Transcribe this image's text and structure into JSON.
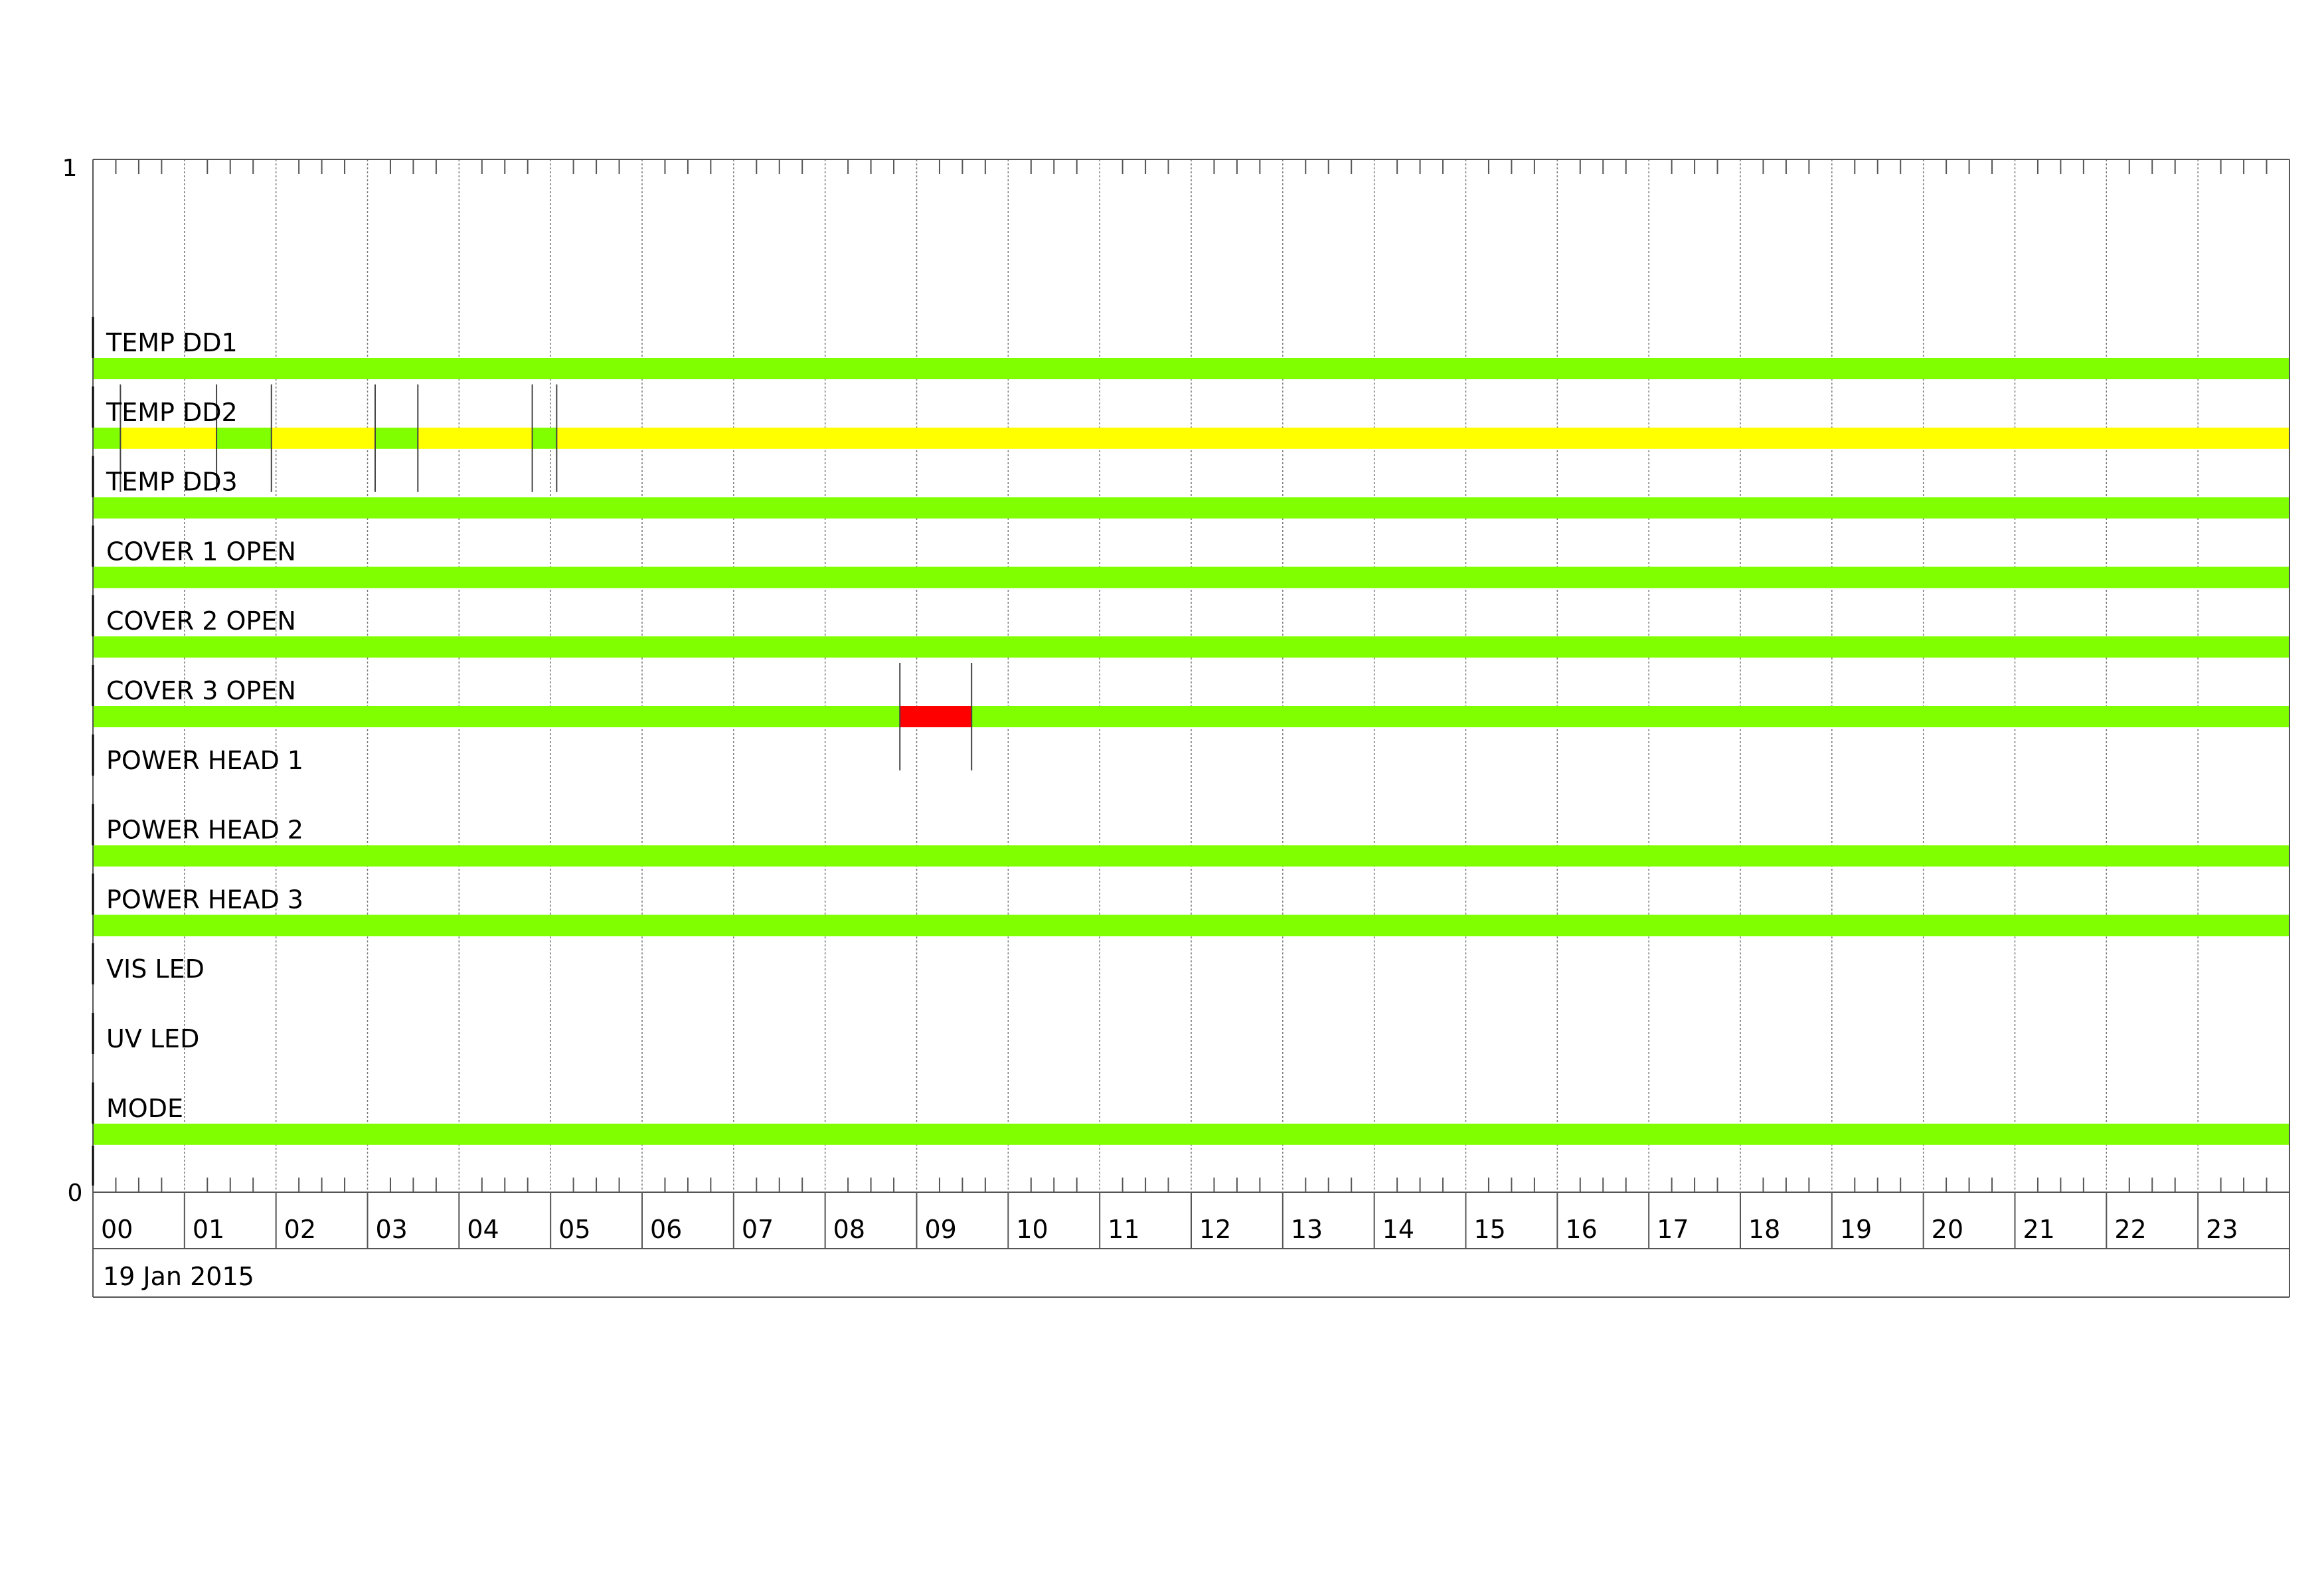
{
  "chart_data": {
    "type": "timeline",
    "title": "",
    "xlabel": "",
    "ylabel": "",
    "y_tick_labels": {
      "top": "1",
      "bottom": "0"
    },
    "ylim": [
      0,
      1
    ],
    "x_range_hours": [
      0,
      24
    ],
    "x_tick_labels": [
      "00",
      "01",
      "02",
      "03",
      "04",
      "05",
      "06",
      "07",
      "08",
      "09",
      "10",
      "11",
      "12",
      "13",
      "14",
      "15",
      "16",
      "17",
      "18",
      "19",
      "20",
      "21",
      "22",
      "23"
    ],
    "minor_ticks_per_hour": 4,
    "date_label": "19 Jan 2015",
    "grid": "vertical dotted at each hour",
    "colors": {
      "ok": "#7fff00",
      "warning": "#ffff00",
      "alarm": "#ff0000"
    },
    "rows": [
      {
        "label": "TEMP DD1",
        "segments": [
          {
            "start": "00:00",
            "end": "24:00",
            "state": "ok"
          }
        ]
      },
      {
        "label": "TEMP DD2",
        "segments": [
          {
            "start": "00:00",
            "end": "00:18",
            "state": "ok"
          },
          {
            "start": "00:18",
            "end": "01:21",
            "state": "warning"
          },
          {
            "start": "01:21",
            "end": "01:57",
            "state": "ok"
          },
          {
            "start": "01:57",
            "end": "03:05",
            "state": "warning"
          },
          {
            "start": "03:05",
            "end": "03:33",
            "state": "ok"
          },
          {
            "start": "03:33",
            "end": "04:48",
            "state": "warning"
          },
          {
            "start": "04:48",
            "end": "05:04",
            "state": "ok"
          },
          {
            "start": "05:04",
            "end": "24:00",
            "state": "warning"
          }
        ]
      },
      {
        "label": "TEMP DD3",
        "segments": [
          {
            "start": "00:00",
            "end": "24:00",
            "state": "ok"
          }
        ]
      },
      {
        "label": "COVER 1 OPEN",
        "segments": [
          {
            "start": "00:00",
            "end": "24:00",
            "state": "ok"
          }
        ]
      },
      {
        "label": "COVER 2 OPEN",
        "segments": [
          {
            "start": "00:00",
            "end": "24:00",
            "state": "ok"
          }
        ]
      },
      {
        "label": "COVER 3 OPEN",
        "segments": [
          {
            "start": "00:00",
            "end": "08:49",
            "state": "ok"
          },
          {
            "start": "08:49",
            "end": "09:36",
            "state": "alarm"
          },
          {
            "start": "09:36",
            "end": "24:00",
            "state": "ok"
          }
        ]
      },
      {
        "label": "POWER HEAD 1",
        "segments": []
      },
      {
        "label": "POWER HEAD 2",
        "segments": [
          {
            "start": "00:00",
            "end": "24:00",
            "state": "ok"
          }
        ]
      },
      {
        "label": "POWER HEAD 3",
        "segments": [
          {
            "start": "00:00",
            "end": "24:00",
            "state": "ok"
          }
        ]
      },
      {
        "label": "VIS LED",
        "segments": []
      },
      {
        "label": "UV LED",
        "segments": []
      },
      {
        "label": "MODE",
        "segments": [
          {
            "start": "00:00",
            "end": "24:00",
            "state": "ok"
          }
        ]
      }
    ]
  }
}
